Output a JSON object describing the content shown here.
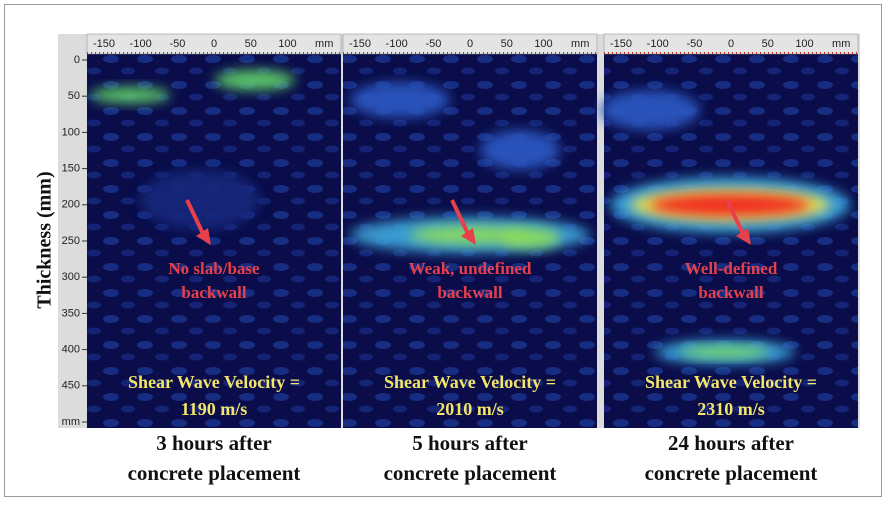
{
  "y_axis": {
    "label": "Thickness (mm)",
    "ticks": [
      "0",
      "50",
      "100",
      "150",
      "200",
      "250",
      "300",
      "350",
      "400",
      "450",
      "mm"
    ]
  },
  "panels": [
    {
      "x_ticks": [
        "-150",
        "-100",
        "-50",
        "0",
        "50",
        "100",
        "mm"
      ],
      "annotation": [
        "No slab/base",
        "backwall"
      ],
      "velocity": [
        "Shear Wave Velocity =",
        "1190 m/s"
      ],
      "caption": [
        "3 hours after",
        "concrete placement"
      ]
    },
    {
      "x_ticks": [
        "-150",
        "-100",
        "-50",
        "0",
        "50",
        "100",
        "mm"
      ],
      "annotation": [
        "Weak, undefined",
        "backwall"
      ],
      "velocity": [
        "Shear Wave Velocity =",
        "2010 m/s"
      ],
      "caption": [
        "5 hours after",
        "concrete placement"
      ]
    },
    {
      "x_ticks": [
        "-150",
        "-100",
        "-50",
        "0",
        "50",
        "100",
        "mm"
      ],
      "annotation": [
        "Well-defined",
        "backwall"
      ],
      "velocity": [
        "Shear Wave Velocity =",
        "2310 m/s"
      ],
      "caption": [
        "24 hours after",
        "concrete placement"
      ]
    }
  ]
}
